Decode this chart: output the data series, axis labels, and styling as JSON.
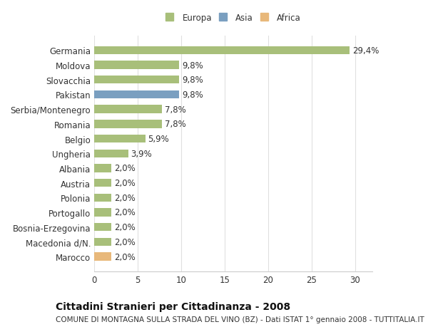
{
  "categories": [
    "Marocco",
    "Macedonia d/N.",
    "Bosnia-Erzegovina",
    "Portogallo",
    "Polonia",
    "Austria",
    "Albania",
    "Ungheria",
    "Belgio",
    "Romania",
    "Serbia/Montenegro",
    "Pakistan",
    "Slovacchia",
    "Moldova",
    "Germania"
  ],
  "values": [
    2.0,
    2.0,
    2.0,
    2.0,
    2.0,
    2.0,
    2.0,
    3.9,
    5.9,
    7.8,
    7.8,
    9.8,
    9.8,
    9.8,
    29.4
  ],
  "labels": [
    "2,0%",
    "2,0%",
    "2,0%",
    "2,0%",
    "2,0%",
    "2,0%",
    "2,0%",
    "3,9%",
    "5,9%",
    "7,8%",
    "7,8%",
    "9,8%",
    "9,8%",
    "9,8%",
    "29,4%"
  ],
  "colors": [
    "#e8b87a",
    "#a8bf7a",
    "#a8bf7a",
    "#a8bf7a",
    "#a8bf7a",
    "#a8bf7a",
    "#a8bf7a",
    "#a8bf7a",
    "#a8bf7a",
    "#a8bf7a",
    "#a8bf7a",
    "#7a9fc0",
    "#a8bf7a",
    "#a8bf7a",
    "#a8bf7a"
  ],
  "legend": [
    {
      "label": "Europa",
      "color": "#a8bf7a"
    },
    {
      "label": "Asia",
      "color": "#7a9fc0"
    },
    {
      "label": "Africa",
      "color": "#e8b87a"
    }
  ],
  "title": "Cittadini Stranieri per Cittadinanza - 2008",
  "subtitle": "COMUNE DI MONTAGNA SULLA STRADA DEL VINO (BZ) - Dati ISTAT 1° gennaio 2008 - TUTTITALIA.IT",
  "xlim": [
    0,
    32
  ],
  "xticks": [
    0,
    5,
    10,
    15,
    20,
    25,
    30
  ],
  "background_color": "#ffffff",
  "bar_height": 0.55,
  "title_fontsize": 10,
  "subtitle_fontsize": 7.5,
  "tick_fontsize": 8.5,
  "label_fontsize": 8.5
}
